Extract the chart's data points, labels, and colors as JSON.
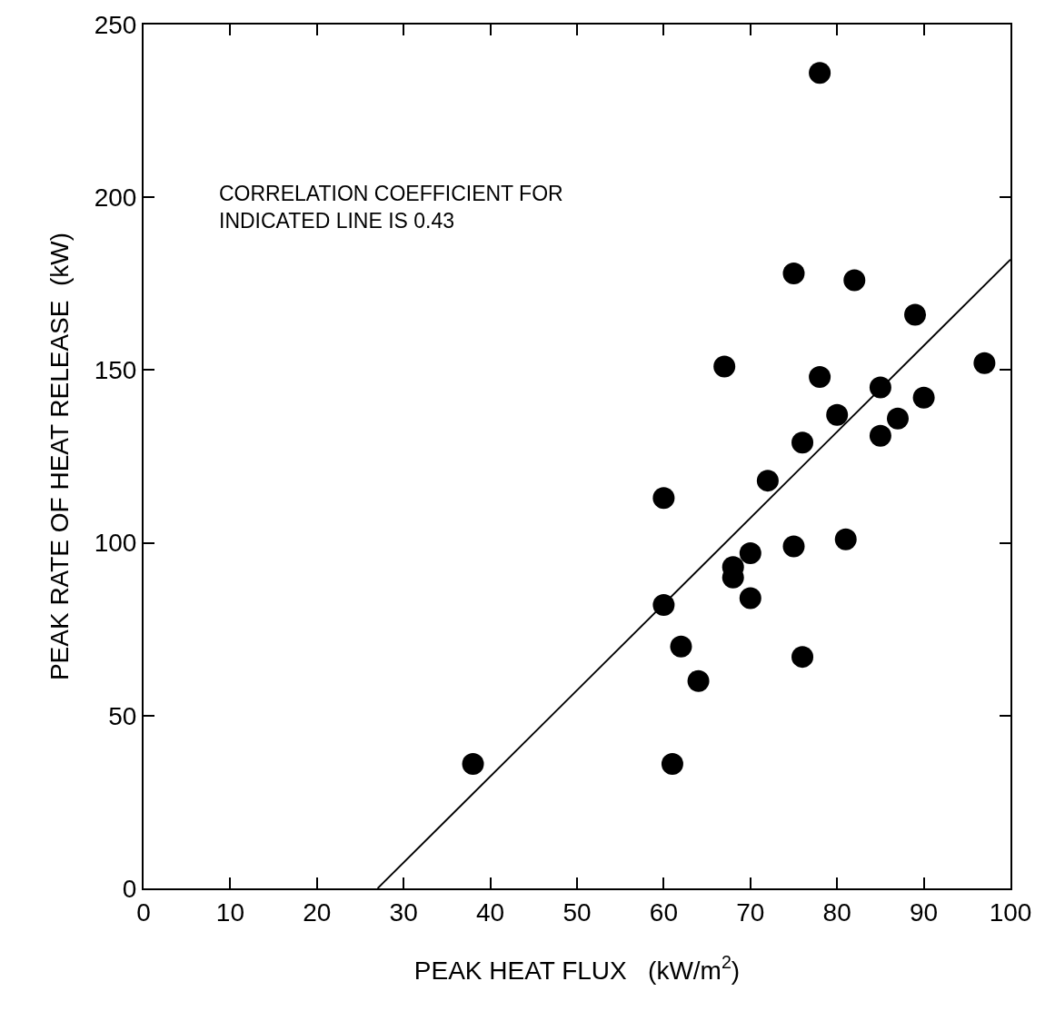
{
  "chart_data": {
    "type": "scatter",
    "xlabel": "PEAK HEAT FLUX   (kW/m$^{2}$)",
    "ylabel": "PEAK RATE OF HEAT RELEASE  (kW)",
    "annotations": [
      "CORRELATION COEFFICIENT FOR\nINDICATED LINE IS 0.43"
    ],
    "xlim": [
      0,
      100
    ],
    "xticks": [
      0,
      10,
      20,
      30,
      40,
      50,
      60,
      70,
      80,
      90,
      100
    ],
    "ylim": [
      0,
      250
    ],
    "yticks": [
      0,
      50,
      100,
      150,
      200,
      250
    ],
    "series": [
      {
        "marker": "circle",
        "color": "#000000",
        "x": [
          38,
          61,
          60,
          60,
          62,
          64,
          67,
          68,
          68,
          70,
          70,
          72,
          75,
          75,
          76,
          76,
          78,
          78,
          80,
          81,
          82,
          85,
          85,
          87,
          89,
          90,
          97
        ],
        "values": [
          36,
          36,
          82,
          113,
          70,
          60,
          151,
          93,
          90,
          97,
          84,
          118,
          178,
          99,
          67,
          129,
          148,
          236,
          137,
          101,
          176,
          145,
          131,
          136,
          166,
          142,
          152
        ]
      },
      {
        "type": "line",
        "color": "#000000",
        "line_style": "solid",
        "x": [
          27,
          100
        ],
        "values": [
          0,
          182
        ]
      }
    ]
  }
}
